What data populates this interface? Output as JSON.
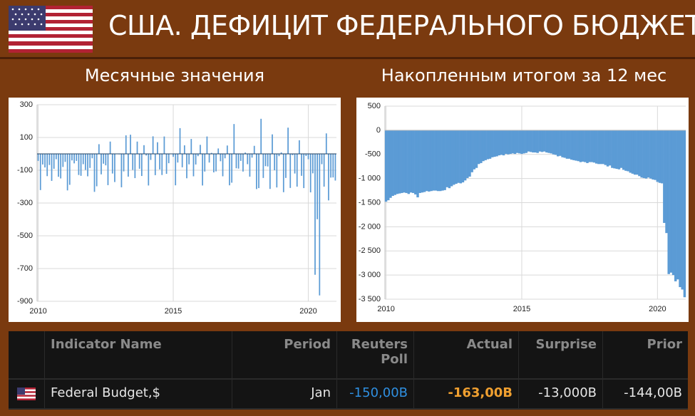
{
  "page_title": "США. ДЕФИЦИТ ФЕДЕРАЛЬНОГО БЮДЖЕТА",
  "chart_data": [
    {
      "type": "bar",
      "title": "Месячные значения",
      "color": "#5b9bd5",
      "grid": true,
      "categories": [
        "2010",
        null,
        null,
        null,
        null,
        null,
        null,
        null,
        null,
        null,
        null,
        null,
        null,
        null,
        null,
        null,
        null,
        null,
        null,
        null,
        null,
        null,
        null,
        null,
        null,
        null,
        null,
        null,
        null,
        null,
        null,
        null,
        null,
        null,
        null,
        null,
        null,
        null,
        null,
        null,
        null,
        null,
        null,
        null,
        null,
        null,
        null,
        null,
        null,
        null,
        null,
        null,
        null,
        null,
        null,
        null,
        null,
        null,
        null,
        null,
        "2015",
        null,
        null,
        null,
        null,
        null,
        null,
        null,
        null,
        null,
        null,
        null,
        null,
        null,
        null,
        null,
        null,
        null,
        null,
        null,
        null,
        null,
        null,
        null,
        null,
        null,
        null,
        null,
        null,
        null,
        null,
        null,
        null,
        null,
        null,
        null,
        null,
        null,
        null,
        null,
        null,
        null,
        null,
        null,
        null,
        null,
        null,
        null,
        null,
        null,
        null,
        null,
        null,
        null,
        null,
        null,
        null,
        null,
        null,
        null,
        "2020",
        null,
        null,
        null,
        null,
        null,
        null,
        null,
        null,
        null,
        null,
        null,
        null
      ],
      "values": [
        -43,
        -221,
        -65,
        -83,
        -136,
        -68,
        -165,
        -91,
        -33,
        -140,
        -150,
        -80,
        -49,
        -223,
        -189,
        -40,
        -58,
        -43,
        -129,
        -134,
        -63,
        -98,
        -137,
        -86,
        -27,
        -232,
        -198,
        59,
        -125,
        -60,
        -70,
        -191,
        75,
        -120,
        -172,
        -1,
        -3,
        -204,
        -107,
        113,
        -139,
        117,
        -98,
        -148,
        75,
        -91,
        -135,
        53,
        -10,
        -193,
        -37,
        107,
        -130,
        71,
        -95,
        -129,
        106,
        -122,
        -57,
        1,
        -18,
        -192,
        -53,
        157,
        -82,
        52,
        -149,
        -64,
        91,
        -137,
        -65,
        -14,
        55,
        -193,
        -108,
        106,
        -53,
        6,
        -113,
        -107,
        33,
        -45,
        -137,
        -27,
        51,
        -192,
        -176,
        182,
        -88,
        -90,
        -43,
        -108,
        8,
        -63,
        -139,
        -23,
        49,
        -215,
        -209,
        214,
        -147,
        -75,
        -77,
        -214,
        119,
        -100,
        -205,
        -14,
        9,
        -234,
        -147,
        160,
        -208,
        -8,
        -120,
        -200,
        83,
        -134,
        -209,
        -13,
        -33,
        -235,
        -119,
        -738,
        -399,
        -864,
        -63,
        -200,
        125,
        -284,
        -145,
        -144,
        -163
      ],
      "ylim": [
        -900,
        300
      ],
      "yticks": [
        300,
        100,
        -100,
        -300,
        -500,
        -700,
        -900
      ]
    },
    {
      "type": "bar",
      "title": "Накопленным итогом за 12 мес",
      "color": "#5b9bd5",
      "grid": true,
      "categories": [
        "2010",
        null,
        null,
        null,
        null,
        null,
        null,
        null,
        null,
        null,
        null,
        null,
        null,
        null,
        null,
        null,
        null,
        null,
        null,
        null,
        null,
        null,
        null,
        null,
        null,
        null,
        null,
        null,
        null,
        null,
        null,
        null,
        null,
        null,
        null,
        null,
        null,
        null,
        null,
        null,
        null,
        null,
        null,
        null,
        null,
        null,
        null,
        null,
        null,
        null,
        null,
        null,
        null,
        null,
        null,
        null,
        null,
        null,
        null,
        null,
        "2015",
        null,
        null,
        null,
        null,
        null,
        null,
        null,
        null,
        null,
        null,
        null,
        null,
        null,
        null,
        null,
        null,
        null,
        null,
        null,
        null,
        null,
        null,
        null,
        null,
        null,
        null,
        null,
        null,
        null,
        null,
        null,
        null,
        null,
        null,
        null,
        null,
        null,
        null,
        null,
        null,
        null,
        null,
        null,
        null,
        null,
        null,
        null,
        null,
        null,
        null,
        null,
        null,
        null,
        null,
        null,
        null,
        null,
        null,
        null,
        "2020",
        null,
        null,
        null,
        null,
        null,
        null,
        null,
        null,
        null,
        null,
        null,
        null
      ],
      "values": [
        -1480,
        -1450,
        -1400,
        -1360,
        -1340,
        -1320,
        -1310,
        -1300,
        -1290,
        -1300,
        -1320,
        -1290,
        -1300,
        -1330,
        -1390,
        -1300,
        -1290,
        -1280,
        -1260,
        -1270,
        -1260,
        -1250,
        -1250,
        -1260,
        -1260,
        -1250,
        -1240,
        -1180,
        -1200,
        -1160,
        -1130,
        -1110,
        -1090,
        -1100,
        -1080,
        -1040,
        -990,
        -960,
        -870,
        -810,
        -780,
        -700,
        -680,
        -640,
        -620,
        -600,
        -590,
        -560,
        -550,
        -540,
        -520,
        -510,
        -520,
        -490,
        -500,
        -490,
        -480,
        -490,
        -470,
        -480,
        -490,
        -480,
        -470,
        -440,
        -450,
        -460,
        -460,
        -470,
        -440,
        -450,
        -440,
        -460,
        -470,
        -480,
        -500,
        -510,
        -540,
        -530,
        -560,
        -570,
        -590,
        -590,
        -610,
        -620,
        -630,
        -640,
        -660,
        -650,
        -660,
        -680,
        -660,
        -660,
        -670,
        -690,
        -700,
        -700,
        -700,
        -720,
        -750,
        -730,
        -780,
        -790,
        -800,
        -810,
        -780,
        -820,
        -840,
        -850,
        -880,
        -900,
        -920,
        -920,
        -950,
        -980,
        -990,
        -1000,
        -980,
        -1000,
        -1020,
        -1030,
        -1070,
        -1090,
        -1100,
        -1920,
        -2130,
        -2980,
        -2950,
        -3000,
        -3130,
        -3090,
        -3250,
        -3300,
        -3460
      ],
      "ylim": [
        -3500,
        500
      ],
      "yticks": [
        500,
        0,
        -500,
        {
          "value": -1000,
          "label": "-1 000"
        },
        {
          "value": -1500,
          "label": "-1 500"
        },
        {
          "value": -2000,
          "label": "-2 000"
        },
        {
          "value": -2500,
          "label": "-2 500"
        },
        {
          "value": -3000,
          "label": "-3 000"
        },
        {
          "value": -3500,
          "label": "-3 500"
        }
      ]
    }
  ],
  "table": {
    "headers": [
      "Indicator Name",
      "Period",
      "Reuters Poll",
      "Actual",
      "Surprise",
      "Prior"
    ],
    "rows": [
      [
        "Federal Budget,$",
        "Jan",
        "-150,00B",
        "-163,00B",
        "-13,000B",
        "-144,00B"
      ]
    ]
  }
}
